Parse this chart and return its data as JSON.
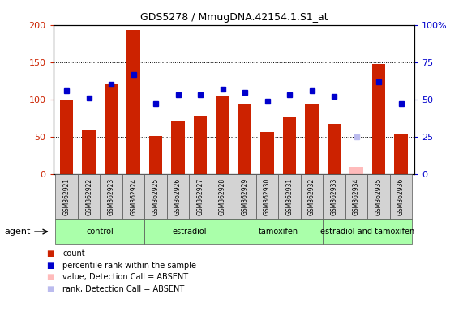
{
  "title": "GDS5278 / MmugDNA.42154.1.S1_at",
  "samples": [
    "GSM362921",
    "GSM362922",
    "GSM362923",
    "GSM362924",
    "GSM362925",
    "GSM362926",
    "GSM362927",
    "GSM362928",
    "GSM362929",
    "GSM362930",
    "GSM362931",
    "GSM362932",
    "GSM362933",
    "GSM362934",
    "GSM362935",
    "GSM362936"
  ],
  "counts": [
    100,
    60,
    120,
    193,
    51,
    72,
    78,
    105,
    94,
    56,
    76,
    94,
    67,
    10,
    148,
    54
  ],
  "ranks": [
    56,
    51,
    60,
    67,
    47,
    53,
    53,
    57,
    55,
    49,
    53,
    56,
    52,
    25,
    62,
    47
  ],
  "absent_count_idx": [
    13
  ],
  "absent_rank_idx": [
    13
  ],
  "groups": [
    {
      "label": "control",
      "start": 0,
      "end": 4,
      "color": "#aaffaa"
    },
    {
      "label": "estradiol",
      "start": 4,
      "end": 8,
      "color": "#aaffaa"
    },
    {
      "label": "tamoxifen",
      "start": 8,
      "end": 12,
      "color": "#aaffaa"
    },
    {
      "label": "estradiol and tamoxifen",
      "start": 12,
      "end": 16,
      "color": "#aaffaa"
    }
  ],
  "ylim_left": [
    0,
    200
  ],
  "ylim_right": [
    0,
    100
  ],
  "yticks_left": [
    0,
    50,
    100,
    150,
    200
  ],
  "yticks_right": [
    0,
    25,
    50,
    75,
    100
  ],
  "ytick_right_labels": [
    "0",
    "25",
    "50",
    "75",
    "100%"
  ],
  "bar_color": "#cc2200",
  "rank_color": "#0000cc",
  "absent_bar_color": "#ffbbbb",
  "absent_rank_color": "#bbbbee",
  "grid_vals": [
    50,
    100,
    150
  ],
  "bar_width": 0.6
}
